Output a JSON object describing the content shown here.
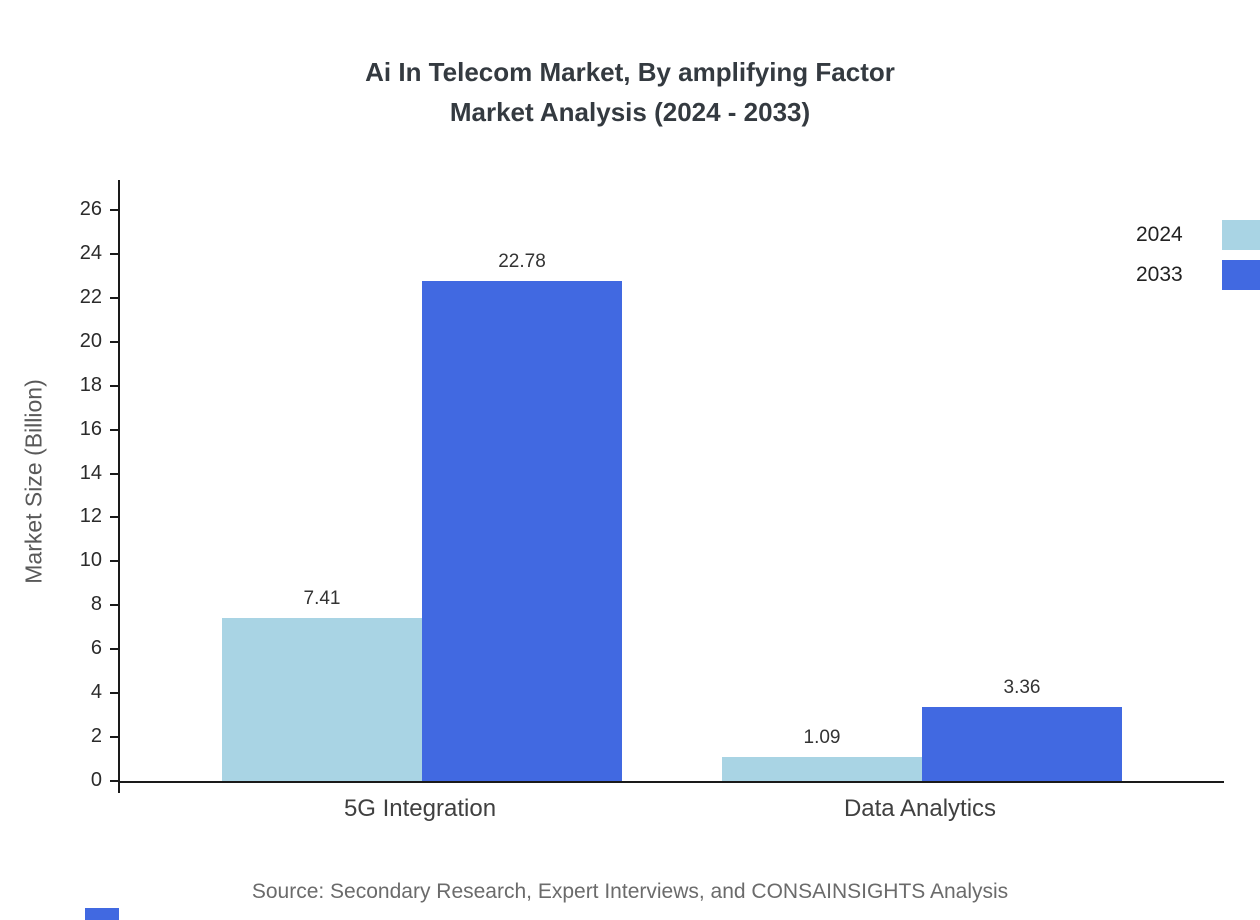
{
  "title": {
    "line1": "Ai In Telecom Market, By amplifying Factor",
    "line2": "Market Analysis (2024 - 2033)"
  },
  "chart_data": {
    "type": "bar",
    "title": "Ai In Telecom Market, By amplifying Factor Market Analysis (2024 - 2033)",
    "categories": [
      "5G Integration",
      "Data Analytics"
    ],
    "series": [
      {
        "name": "2024",
        "color": "#a9d4e4",
        "values": [
          7.41,
          1.09
        ]
      },
      {
        "name": "2033",
        "color": "#4169e1",
        "values": [
          22.78,
          3.36
        ]
      }
    ],
    "xlabel": "",
    "ylabel": "Market Size (Billion)",
    "ylim": [
      0,
      26
    ],
    "ytick_step": 2,
    "grid": false,
    "legend_position": "top-right",
    "value_labels": true
  },
  "source": "Source: Secondary Research, Expert Interviews, and CONSAINSIGHTS Analysis"
}
